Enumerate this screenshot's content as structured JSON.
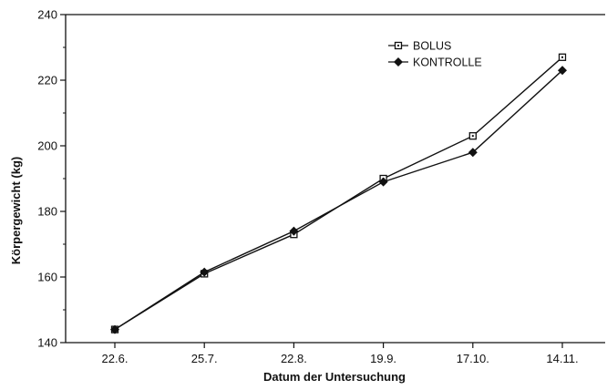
{
  "chart_data": {
    "type": "line",
    "categories": [
      "22.6.",
      "25.7.",
      "22.8.",
      "19.9.",
      "17.10.",
      "14.11."
    ],
    "series": [
      {
        "name": "BOLUS",
        "marker": "open-square",
        "values": [
          144,
          161,
          173,
          190,
          203,
          227
        ]
      },
      {
        "name": "KONTROLLE",
        "marker": "filled-diamond",
        "values": [
          144,
          161.5,
          174,
          189,
          198,
          223
        ]
      }
    ],
    "title": "",
    "xlabel": "Datum der Untersuchung",
    "ylabel": "Körpergewicht (kg)",
    "ylim": [
      140,
      240
    ],
    "yticks": [
      140,
      160,
      180,
      200,
      220,
      240
    ],
    "ytick_labels": [
      "140",
      "160",
      "180",
      "200",
      "220",
      "240"
    ],
    "grid": false,
    "legend_position": "top-right",
    "colors": {
      "line": "#111111",
      "background": "#ffffff"
    }
  }
}
